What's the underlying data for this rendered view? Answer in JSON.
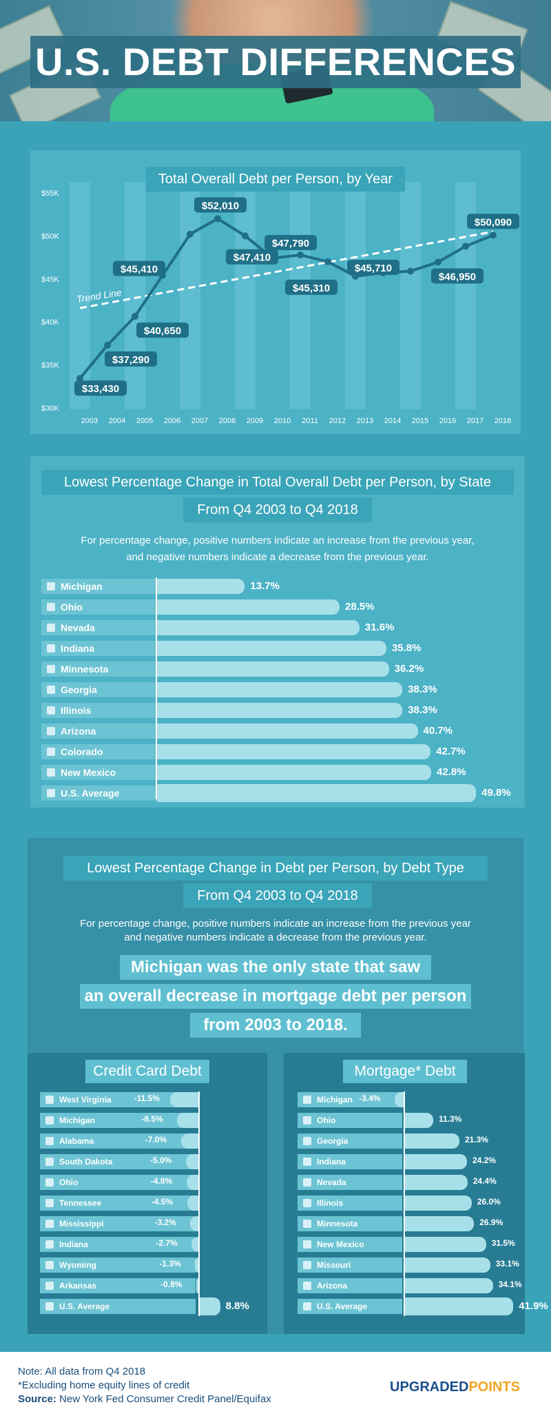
{
  "header": {
    "title": "U.S. DEBT DIFFERENCES"
  },
  "chart_data": [
    {
      "type": "line",
      "title": "Total Overall Debt per Person, by Year",
      "x": [
        "2003",
        "2004",
        "2005",
        "2006",
        "2007",
        "2008",
        "2009",
        "2010",
        "2011",
        "2012",
        "2013",
        "2014",
        "2015",
        "2016",
        "2017",
        "2018"
      ],
      "series": [
        {
          "values": [
            33430,
            37290,
            40650,
            45410,
            50200,
            52010,
            50000,
            47410,
            47790,
            47000,
            45310,
            45710,
            45900,
            46950,
            48800,
            50090
          ]
        }
      ],
      "data_labels": [
        {
          "x": "2003",
          "text": "$33,430"
        },
        {
          "x": "2004",
          "text": "$37,290"
        },
        {
          "x": "2005",
          "text": "$40,650"
        },
        {
          "x": "2006",
          "text": "$45,410"
        },
        {
          "x": "2008",
          "text": "$52,010"
        },
        {
          "x": "2010",
          "text": "$47,410"
        },
        {
          "x": "2011",
          "text": "$47,790"
        },
        {
          "x": "2013",
          "text": "$45,310"
        },
        {
          "x": "2014",
          "text": "$45,710"
        },
        {
          "x": "2016",
          "text": "$46,950"
        },
        {
          "x": "2018",
          "text": "$50,090"
        }
      ],
      "trend_line": {
        "label": "Trend Line",
        "start_value": 41600,
        "end_value": 50500
      },
      "yticks": [
        "$30K",
        "$35K",
        "$40K",
        "$45K",
        "$50K",
        "$55K"
      ],
      "ylim": [
        30000,
        55000
      ],
      "grid": false
    },
    {
      "type": "bar",
      "title": "Lowest Percentage Change in Total Overall Debt per Person, by State",
      "subtitle": "From Q4 2003 to Q4 2018",
      "categories": [
        "Michigan",
        "Ohio",
        "Nevada",
        "Indiana",
        "Minnesota",
        "Georgia",
        "Illinois",
        "Arizona",
        "Colorado",
        "New Mexico",
        "U.S. Average"
      ],
      "values": [
        13.7,
        28.5,
        31.6,
        35.8,
        36.2,
        38.3,
        38.3,
        40.7,
        42.7,
        42.8,
        49.8
      ],
      "value_labels": [
        "13.7%",
        "28.5%",
        "31.6%",
        "35.8%",
        "36.2%",
        "38.3%",
        "38.3%",
        "40.7%",
        "42.7%",
        "42.8%",
        "49.8%"
      ]
    },
    {
      "type": "bar",
      "title": "Credit Card Debt",
      "categories": [
        "West Virginia",
        "Michigan",
        "Alabama",
        "South Dakota",
        "Ohio",
        "Tennessee",
        "Mississippi",
        "Indiana",
        "Wyoming",
        "Arkansas",
        "U.S. Average"
      ],
      "values": [
        -11.5,
        -8.5,
        -7.0,
        -5.0,
        -4.8,
        -4.5,
        -3.2,
        -2.7,
        -1.3,
        -0.8,
        8.8
      ],
      "value_labels": [
        "-11.5%",
        "-8.5%",
        "-7.0%",
        "-5.0%",
        "-4.8%",
        "-4.5%",
        "-3.2%",
        "-2.7%",
        "-1.3%",
        "-0.8%",
        "8.8%"
      ]
    },
    {
      "type": "bar",
      "title": "Mortgage* Debt",
      "categories": [
        "Michigan",
        "Ohio",
        "Georgia",
        "Indiana",
        "Nevada",
        "Illinois",
        "Minnesota",
        "New Mexico",
        "Missouri",
        "Arizona",
        "U.S. Average"
      ],
      "values": [
        -3.4,
        11.3,
        21.3,
        24.2,
        24.4,
        26.0,
        26.9,
        31.5,
        33.1,
        34.1,
        41.9
      ],
      "value_labels": [
        "-3.4%",
        "11.3%",
        "21.3%",
        "24.2%",
        "24.4%",
        "26.0%",
        "26.9%",
        "31.5%",
        "33.1%",
        "34.1%",
        "41.9%"
      ]
    }
  ],
  "section2": {
    "title_line1": "Lowest Percentage Change in Total Overall Debt per Person, by State",
    "title_line2": "From Q4 2003 to Q4 2018",
    "note_line1": "For percentage change, positive numbers indicate an increase from the previous year,",
    "note_line2": "and negative numbers indicate a decrease from the previous year."
  },
  "section3": {
    "title_line1": "Lowest Percentage Change in Debt per Person, by Debt Type",
    "title_line2": "From Q4 2003 to Q4 2018",
    "note_line1": "For percentage change, positive numbers indicate an increase from the previous year",
    "note_line2": "and negative numbers indicate a decrease from the previous year.",
    "highlight_line1": "Michigan was the only state that saw",
    "highlight_line2": "an overall decrease in mortgage debt per person",
    "highlight_line3": "from 2003 to 2018."
  },
  "footer": {
    "note": "Note: All data from Q4 2018",
    "footnote": "*Excluding home equity lines of credit",
    "source_label": "Source:",
    "source_text": "New York Fed Consumer Credit Panel/Equifax",
    "brand_part1": "UPGRADED",
    "brand_part2": "POINTS"
  },
  "colors": {
    "background": "#47a9bd",
    "line": "#1f6f86",
    "bar": "#a8e0ea",
    "label_bg": "#6cc3d3"
  }
}
